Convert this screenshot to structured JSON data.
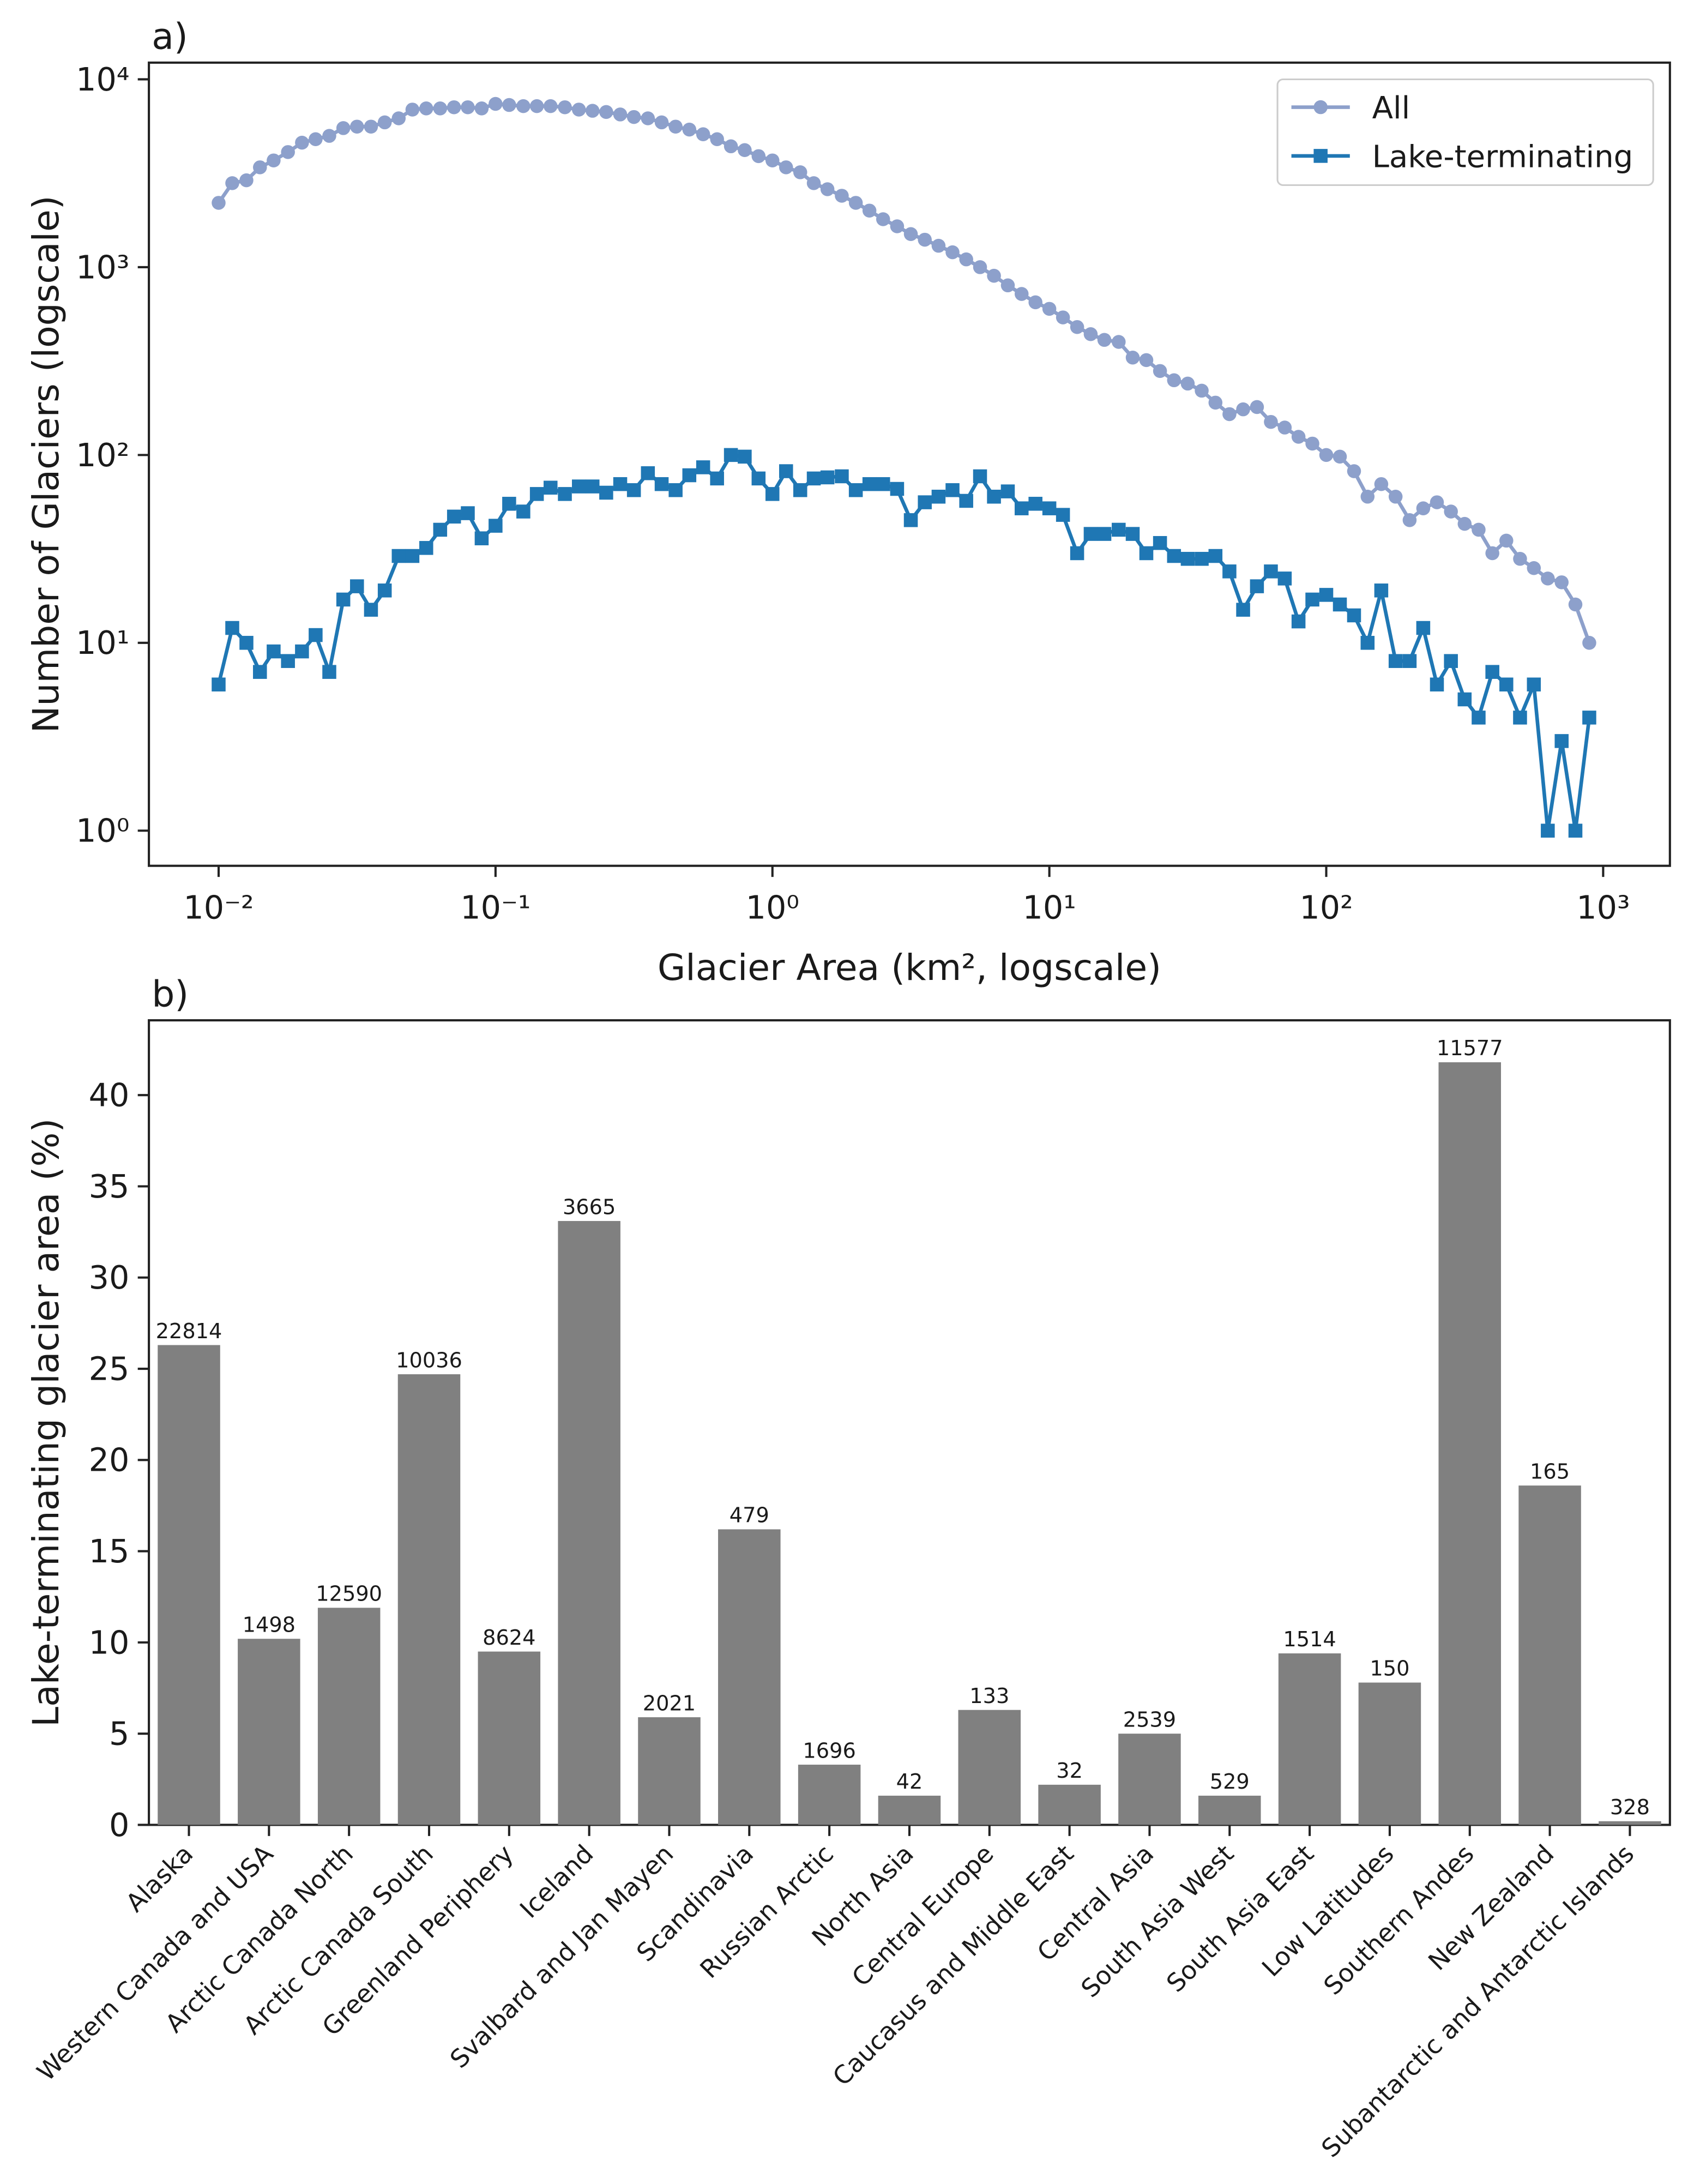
{
  "chart_data": [
    {
      "type": "line",
      "title": "a)",
      "xlabel": "Glacier Area (km², logscale)",
      "ylabel": "Number of Glaciers (logscale)",
      "xscale": "log",
      "yscale": "log",
      "legend": "upper right",
      "xlim": [
        0.0056,
        1742
      ],
      "ylim": [
        0.65,
        12270
      ],
      "xticks": [
        {
          "value": 0.01,
          "label": "10⁻²"
        },
        {
          "value": 0.1,
          "label": "10⁻¹"
        },
        {
          "value": 1,
          "label": "10⁰"
        },
        {
          "value": 10,
          "label": "10¹"
        },
        {
          "value": 100,
          "label": "10²"
        },
        {
          "value": 1000,
          "label": "10³"
        }
      ],
      "yticks": [
        {
          "value": 1,
          "label": "10⁰"
        },
        {
          "value": 10,
          "label": "10¹"
        },
        {
          "value": 100,
          "label": "10²"
        },
        {
          "value": 1000,
          "label": "10³"
        },
        {
          "value": 10000,
          "label": "10⁴"
        }
      ],
      "x": [
        0.01,
        0.0112,
        0.0126,
        0.0141,
        0.0158,
        0.0178,
        0.02,
        0.0224,
        0.0251,
        0.0282,
        0.0316,
        0.0355,
        0.0398,
        0.0447,
        0.0501,
        0.0562,
        0.0631,
        0.0708,
        0.0794,
        0.0891,
        0.1,
        0.112,
        0.126,
        0.141,
        0.158,
        0.178,
        0.2,
        0.224,
        0.251,
        0.282,
        0.316,
        0.355,
        0.398,
        0.447,
        0.501,
        0.562,
        0.631,
        0.708,
        0.794,
        0.891,
        1,
        1.12,
        1.26,
        1.41,
        1.58,
        1.78,
        2,
        2.24,
        2.51,
        2.82,
        3.16,
        3.55,
        3.98,
        4.47,
        5.01,
        5.62,
        6.31,
        7.08,
        7.94,
        8.91,
        10,
        11.2,
        12.6,
        14.1,
        15.8,
        17.8,
        20,
        22.4,
        25.1,
        28.2,
        31.6,
        35.5,
        39.8,
        44.7,
        50.1,
        56.2,
        63.1,
        70.8,
        79.4,
        89.1,
        100,
        112,
        126,
        141,
        158,
        178,
        200,
        224,
        251,
        282,
        316,
        355,
        398,
        447,
        501,
        562,
        631,
        708,
        794,
        891
      ],
      "series": [
        {
          "name": "All",
          "color": "#8da0cb",
          "marker": "circle",
          "values": [
            2200,
            2800,
            2900,
            3400,
            3700,
            4100,
            4600,
            4800,
            5000,
            5500,
            5600,
            5600,
            5900,
            6200,
            6900,
            7000,
            7000,
            7100,
            7100,
            7000,
            7400,
            7300,
            7200,
            7200,
            7200,
            7100,
            6900,
            6800,
            6700,
            6500,
            6300,
            6200,
            5900,
            5600,
            5400,
            5100,
            4800,
            4400,
            4200,
            3900,
            3700,
            3400,
            3200,
            2800,
            2600,
            2400,
            2200,
            2000,
            1800,
            1650,
            1500,
            1400,
            1300,
            1200,
            1100,
            1000,
            900,
            800,
            720,
            650,
            600,
            540,
            480,
            440,
            410,
            400,
            330,
            320,
            280,
            250,
            240,
            220,
            190,
            165,
            175,
            180,
            150,
            140,
            125,
            115,
            100,
            98,
            82,
            60,
            70,
            60,
            45,
            52,
            56,
            50,
            43,
            40,
            30,
            35,
            28,
            25,
            22,
            21,
            16,
            10
          ]
        },
        {
          "name": "Lake-terminating",
          "color": "#1f77b4",
          "marker": "square",
          "values": [
            6,
            12,
            10,
            7,
            9,
            8,
            9,
            11,
            7,
            17,
            20,
            15,
            19,
            29,
            29,
            32,
            40,
            47,
            49,
            36,
            42,
            55,
            50,
            62,
            67,
            62,
            68,
            68,
            63,
            70,
            65,
            80,
            70,
            65,
            78,
            86,
            75,
            100,
            98,
            75,
            62,
            82,
            65,
            75,
            76,
            77,
            65,
            70,
            70,
            66,
            45,
            56,
            60,
            65,
            57,
            77,
            60,
            64,
            52,
            55,
            52,
            48,
            30,
            38,
            38,
            40,
            38,
            30,
            34,
            29,
            28,
            28,
            29,
            24,
            15,
            20,
            24,
            22,
            13,
            17,
            18,
            16,
            14,
            10,
            19,
            8,
            8,
            12,
            6,
            8,
            5,
            4,
            7,
            6,
            4,
            6,
            1,
            3,
            1,
            4
          ]
        }
      ]
    },
    {
      "type": "bar",
      "title": "b)",
      "ylabel": "Lake-terminating glacier area (%)",
      "color": "#808080",
      "ylim": [
        0,
        44.1
      ],
      "yticks": [
        0,
        5,
        10,
        15,
        20,
        25,
        30,
        35,
        40
      ],
      "categories": [
        "Alaska",
        "Western Canada and USA",
        "Arctic Canada North",
        "Arctic Canada South",
        "Greenland Periphery",
        "Iceland",
        "Svalbard and Jan Mayen",
        "Scandinavia",
        "Russian Arctic",
        "North Asia",
        "Central Europe",
        "Caucasus and Middle East",
        "Central Asia",
        "South Asia West",
        "South Asia East",
        "Low Latitudes",
        "Southern Andes",
        "New Zealand",
        "Subantarctic and Antarctic Islands"
      ],
      "values": [
        26.3,
        10.2,
        11.9,
        24.7,
        9.5,
        33.1,
        5.9,
        16.2,
        3.3,
        1.6,
        6.3,
        2.2,
        5.0,
        1.6,
        9.4,
        7.8,
        41.8,
        18.6,
        0.2
      ],
      "bar_labels": [
        22814,
        1498,
        12590,
        10036,
        8624,
        3665,
        2021,
        479,
        1696,
        42,
        133,
        32,
        2539,
        529,
        1514,
        150,
        11577,
        165,
        328
      ]
    }
  ]
}
